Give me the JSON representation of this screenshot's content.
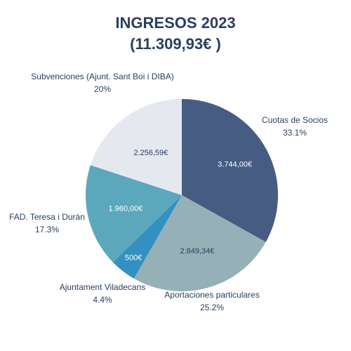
{
  "chart_data": {
    "type": "pie",
    "title": "INGRESOS 2023",
    "subtitle": "(11.309,93€ )",
    "slices": [
      {
        "name": "Cuotas de Socios",
        "value": 3744.0,
        "value_label": "3.744,00€",
        "percent_label": "33.1%",
        "color": "#465c83",
        "text_color": "#ffffff"
      },
      {
        "name": "Aportaciones particulares",
        "value": 2849.34,
        "value_label": "2.849,34€",
        "percent_label": "25.2%",
        "color": "#96b0b8",
        "text_color": "#2a3f5f"
      },
      {
        "name": "Ajuntament Viladecans",
        "value": 500,
        "value_label": "500€",
        "percent_label": "4.4%",
        "color": "#3390c1",
        "text_color": "#ffffff"
      },
      {
        "name": "FAD. Teresa i Durán",
        "value": 1960.0,
        "value_label": "1.960,00€",
        "percent_label": "17.3%",
        "color": "#5ba8bd",
        "text_color": "#ffffff"
      },
      {
        "name": "Subvenciones (Ajunt. Sant Boi i DIBA)",
        "value": 2256.59,
        "value_label": "2.256,59€",
        "percent_label": "20%",
        "color": "#e5e8ee",
        "text_color": "#2a3f5f"
      }
    ],
    "direction": "clockwise",
    "start": "12 o'clock"
  }
}
